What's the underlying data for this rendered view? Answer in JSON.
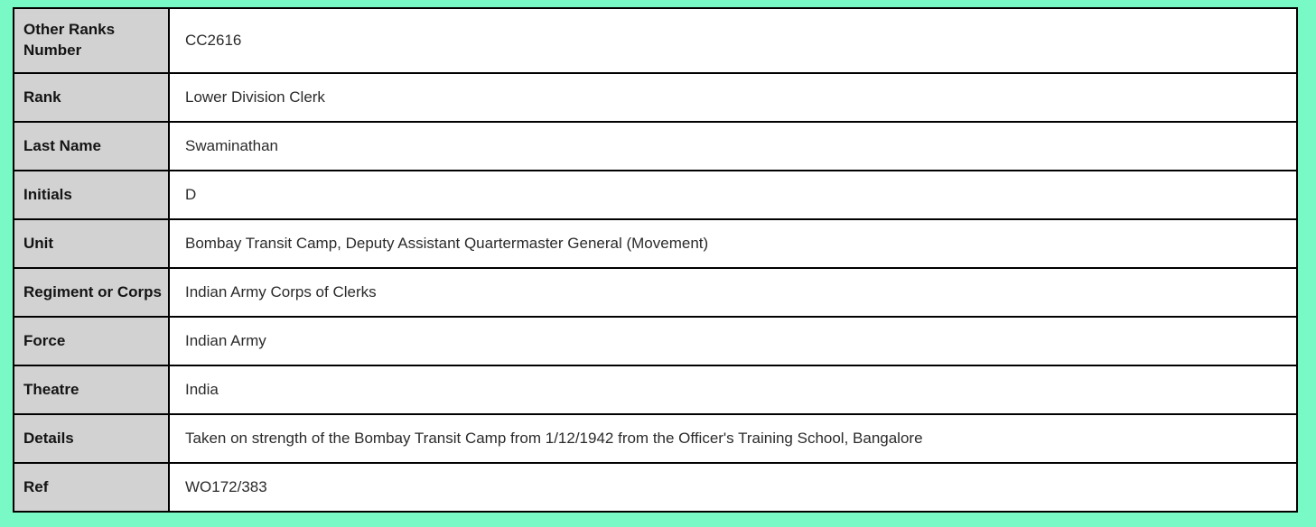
{
  "page": {
    "background_color": "#79f9c6"
  },
  "record_table": {
    "label_column_background": "#d2d2d2",
    "border_color": "#000000",
    "rows": [
      {
        "label": "Other Ranks Number",
        "value": "CC2616"
      },
      {
        "label": "Rank",
        "value": "Lower Division Clerk"
      },
      {
        "label": "Last Name",
        "value": "Swaminathan"
      },
      {
        "label": "Initials",
        "value": "D"
      },
      {
        "label": "Unit",
        "value": "Bombay Transit Camp, Deputy Assistant Quartermaster General (Movement)"
      },
      {
        "label": "Regiment or Corps",
        "value": "Indian Army Corps of Clerks"
      },
      {
        "label": "Force",
        "value": "Indian Army"
      },
      {
        "label": "Theatre",
        "value": "India"
      },
      {
        "label": "Details",
        "value": "Taken on strength of the Bombay Transit Camp from 1/12/1942 from the Officer's Training School, Bangalore"
      },
      {
        "label": "Ref",
        "value": "WO172/383"
      }
    ]
  }
}
